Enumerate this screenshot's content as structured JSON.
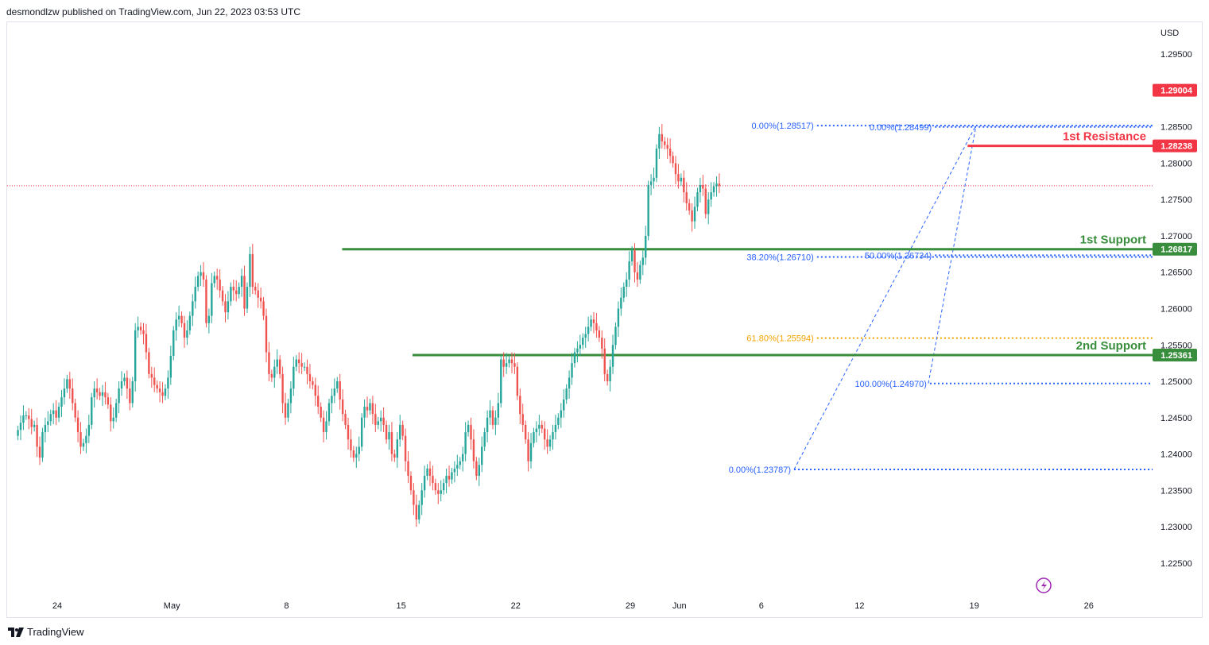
{
  "header": {
    "publisher_line": "desmondlzw published on TradingView.com, Jun 22, 2023 03:53 UTC"
  },
  "footer": {
    "brand": "TradingView",
    "logo_icon": "tradingview-logo-icon"
  },
  "colors": {
    "up": "#26a69a",
    "down": "#ef5350",
    "resistance": "#f23645",
    "support": "#388e3c",
    "fib_blue": "#2962ff",
    "fib_gold": "#f4a400",
    "last_price": "#f23645"
  },
  "chart_data": {
    "type": "candlestick",
    "currency_label": "USD",
    "y_ticks": [
      "1.29500",
      "1.29000",
      "1.28500",
      "1.28000",
      "1.27500",
      "1.27000",
      "1.26500",
      "1.26000",
      "1.25500",
      "1.25000",
      "1.24500",
      "1.24000",
      "1.23500",
      "1.23000",
      "1.22500"
    ],
    "ylim": [
      1.2205,
      1.2995
    ],
    "x_ticks": [
      {
        "label": "24",
        "day": 0
      },
      {
        "label": "May",
        "day": 7
      },
      {
        "label": "8",
        "day": 14
      },
      {
        "label": "15",
        "day": 21
      },
      {
        "label": "22",
        "day": 28
      },
      {
        "label": "29",
        "day": 35
      },
      {
        "label": "Jun",
        "day": 38
      },
      {
        "label": "6",
        "day": 43
      },
      {
        "label": "12",
        "day": 49
      },
      {
        "label": "19",
        "day": 56
      },
      {
        "label": "26",
        "day": 63
      }
    ],
    "last_price": 1.2769,
    "levels": [
      {
        "name": "1st Resistance",
        "price": "1.28238",
        "value": 1.28238,
        "start_day": 55.6,
        "kind": "resistance"
      },
      {
        "name": "1st Support",
        "price": "1.26817",
        "value": 1.26817,
        "start_day": 17.4,
        "kind": "support"
      },
      {
        "name": "2nd Support",
        "price": "1.25361",
        "value": 1.25361,
        "start_day": 21.7,
        "kind": "support"
      }
    ],
    "extra_price_badges": [
      {
        "price": "1.29004",
        "value": 1.29004
      }
    ],
    "fib_levels": [
      {
        "label": "0.00%(1.28517)",
        "value": 1.28517,
        "start_day": 46.4,
        "color": "blue"
      },
      {
        "label": "0.00%(1.28499)",
        "value": 1.28499,
        "start_day": 53.6,
        "color": "blue"
      },
      {
        "label": "38.20%(1.26710)",
        "value": 1.2671,
        "start_day": 46.4,
        "color": "blue"
      },
      {
        "label": "50.00%(1.26734)",
        "value": 1.26734,
        "start_day": 53.6,
        "color": "blue"
      },
      {
        "label": "61.80%(1.25594)",
        "value": 1.25594,
        "start_day": 46.4,
        "color": "gold"
      },
      {
        "label": "100.00%(1.24970)",
        "value": 1.2497,
        "start_day": 53.3,
        "color": "blue"
      },
      {
        "label": "0.00%(1.23787)",
        "value": 1.23787,
        "start_day": 45.0,
        "color": "blue"
      }
    ],
    "trend_lines": [
      {
        "from_day": 45.0,
        "from": 1.23787,
        "to_day": 56.1,
        "to": 1.28517
      },
      {
        "from_day": 53.2,
        "from": 1.2497,
        "to_day": 56.1,
        "to": 1.28499
      }
    ],
    "bars_per_day": 6,
    "start_day": -2.4,
    "closes": [
      1.2433,
      1.2443,
      1.2453,
      1.2453,
      1.2448,
      1.2437,
      1.244,
      1.241,
      1.2395,
      1.243,
      1.244,
      1.2445,
      1.2455,
      1.246,
      1.245,
      1.2465,
      1.2478,
      1.249,
      1.2503,
      1.249,
      1.247,
      1.245,
      1.243,
      1.241,
      1.2415,
      1.2425,
      1.244,
      1.2478,
      1.249,
      1.2485,
      1.248,
      1.2485,
      1.2478,
      1.2468,
      1.2445,
      1.245,
      1.247,
      1.249,
      1.25,
      1.2505,
      1.249,
      1.247,
      1.25,
      1.257,
      1.2575,
      1.257,
      1.2565,
      1.254,
      1.251,
      1.2505,
      1.2495,
      1.249,
      1.2485,
      1.248,
      1.249,
      1.2505,
      1.2535,
      1.257,
      1.2585,
      1.259,
      1.258,
      1.256,
      1.257,
      1.259,
      1.261,
      1.263,
      1.2645,
      1.265,
      1.264,
      1.258,
      1.259,
      1.2635,
      1.2645,
      1.264,
      1.2625,
      1.261,
      1.2595,
      1.261,
      1.263,
      1.2625,
      1.262,
      1.263,
      1.2645,
      1.26,
      1.263,
      1.2675,
      1.263,
      1.2625,
      1.2615,
      1.261,
      1.259,
      1.254,
      1.251,
      1.2505,
      1.252,
      1.253,
      1.251,
      1.247,
      1.245,
      1.247,
      1.249,
      1.252,
      1.253,
      1.2525,
      1.252,
      1.252,
      1.251,
      1.25,
      1.2495,
      1.248,
      1.2465,
      1.245,
      1.243,
      1.2445,
      1.247,
      1.248,
      1.249,
      1.25,
      1.2475,
      1.2455,
      1.244,
      1.242,
      1.2405,
      1.2395,
      1.24,
      1.241,
      1.245,
      1.2465,
      1.246,
      1.247,
      1.2455,
      1.244,
      1.2445,
      1.245,
      1.244,
      1.242,
      1.243,
      1.24,
      1.2395,
      1.242,
      1.244,
      1.2425,
      1.239,
      1.237,
      1.235,
      1.233,
      1.231,
      1.233,
      1.235,
      1.237,
      1.238,
      1.237,
      1.236,
      1.235,
      1.2345,
      1.235,
      1.236,
      1.237,
      1.2365,
      1.2375,
      1.238,
      1.2385,
      1.239,
      1.24,
      1.243,
      1.244,
      1.242,
      1.239,
      1.237,
      1.2385,
      1.241,
      1.243,
      1.245,
      1.246,
      1.244,
      1.245,
      1.247,
      1.253,
      1.252,
      1.2525,
      1.253,
      1.2525,
      1.252,
      1.248,
      1.2455,
      1.244,
      1.242,
      1.239,
      1.2415,
      1.243,
      1.2435,
      1.244,
      1.2435,
      1.242,
      1.241,
      1.242,
      1.243,
      1.244,
      1.245,
      1.246,
      1.2475,
      1.249,
      1.2505,
      1.2525,
      1.254,
      1.2545,
      1.255,
      1.256,
      1.2565,
      1.2575,
      1.2585,
      1.258,
      1.257,
      1.256,
      1.2545,
      1.251,
      1.25,
      1.252,
      1.255,
      1.2575,
      1.26,
      1.2615,
      1.263,
      1.264,
      1.2665,
      1.268,
      1.265,
      1.264,
      1.266,
      1.267,
      1.27,
      1.277,
      1.2775,
      1.278,
      1.282,
      1.284,
      1.283,
      1.2825,
      1.282,
      1.281,
      1.28,
      1.2785,
      1.2775,
      1.278,
      1.276,
      1.2745,
      1.2735,
      1.272,
      1.274,
      1.276,
      1.277,
      1.2765,
      1.273,
      1.275,
      1.276,
      1.2768,
      1.2772,
      1.2769
    ]
  }
}
